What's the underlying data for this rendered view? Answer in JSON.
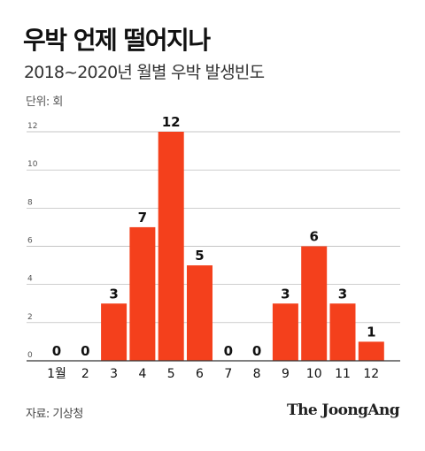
{
  "title": "우박 언제 떨어지나",
  "subtitle": "2018~2020년 월별 우박 발생빈도",
  "unit_label": "단위: 회",
  "source": "자료: 기상청",
  "brand": "The JoongAng",
  "colors": {
    "bar": "#f4401c",
    "grid": "#b0b0b0",
    "axis": "#333333",
    "text": "#111111"
  },
  "chart_data": {
    "type": "bar",
    "categories": [
      "1월",
      "2",
      "3",
      "4",
      "5",
      "6",
      "7",
      "8",
      "9",
      "10",
      "11",
      "12"
    ],
    "values": [
      0,
      0,
      3,
      7,
      12,
      5,
      0,
      0,
      3,
      6,
      3,
      1
    ],
    "ylim": [
      0,
      12
    ],
    "yticks": [
      0,
      2,
      4,
      6,
      8,
      10,
      12
    ],
    "ylabel": "단위: 회",
    "xlabel": "",
    "grid": true
  }
}
